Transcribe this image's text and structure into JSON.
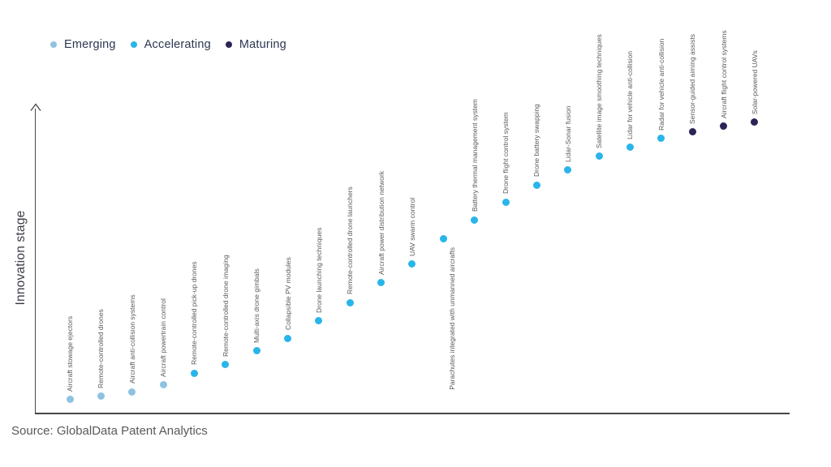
{
  "legend": {
    "items": [
      {
        "label": "Emerging",
        "stage": "emerging"
      },
      {
        "label": "Accelerating",
        "stage": "accelerating"
      },
      {
        "label": "Maturing",
        "stage": "maturing"
      }
    ]
  },
  "colors": {
    "emerging": "#8fc2e0",
    "accelerating": "#29b5ea",
    "maturing": "#2d2356",
    "axis": "#474747",
    "point_label_text": "#595959",
    "legend_text": "#2b3750",
    "y_axis_title_text": "#3a3b45",
    "source_text": "#595959"
  },
  "axis": {
    "y_label": "Innovation stage"
  },
  "source": {
    "text": "Source: GlobalData Patent Analytics"
  },
  "chart_data": {
    "type": "scatter",
    "title": "",
    "xlabel": "",
    "ylabel": "Innovation stage",
    "grid": false,
    "legend_position": "top-left",
    "legend": [
      "Emerging",
      "Accelerating",
      "Maturing"
    ],
    "y_axis": "qualitative innovation-stage scale (no numeric ticks); score is 0-100 position estimated from pixels, bottom=0, top=100",
    "points": [
      {
        "label": "Aircraft stowage ejectors",
        "stage": "emerging",
        "score": 4.5,
        "label_position": "above"
      },
      {
        "label": "Remote-controlled drones",
        "stage": "emerging",
        "score": 5.6,
        "label_position": "above"
      },
      {
        "label": "Aircraft anti-collision systems",
        "stage": "emerging",
        "score": 7.1,
        "label_position": "above"
      },
      {
        "label": "Aircraft powertrain control",
        "stage": "emerging",
        "score": 9.3,
        "label_position": "above"
      },
      {
        "label": "Remote-controlled pick-up drones",
        "stage": "accelerating",
        "score": 13.2,
        "label_position": "above"
      },
      {
        "label": "Remote-controlled drone imaging",
        "stage": "accelerating",
        "score": 15.9,
        "label_position": "above"
      },
      {
        "label": "Multi-axis drone gimbals",
        "stage": "accelerating",
        "score": 20.4,
        "label_position": "above"
      },
      {
        "label": "Collapsible PV modules",
        "stage": "accelerating",
        "score": 24.6,
        "label_position": "above"
      },
      {
        "label": "Drone launching techniques",
        "stage": "accelerating",
        "score": 30.2,
        "label_position": "above"
      },
      {
        "label": "Remote-controlled drone launchers",
        "stage": "accelerating",
        "score": 36.2,
        "label_position": "above"
      },
      {
        "label": "Aircraft power distribution network",
        "stage": "accelerating",
        "score": 42.6,
        "label_position": "above"
      },
      {
        "label": "UAV swarm control",
        "stage": "accelerating",
        "score": 48.7,
        "label_position": "above"
      },
      {
        "label": "Parachutes integrated with unmanned aircrafts",
        "stage": "accelerating",
        "score": 56.9,
        "label_position": "below"
      },
      {
        "label": "Battery thermal management system",
        "stage": "accelerating",
        "score": 63.2,
        "label_position": "above"
      },
      {
        "label": "Drone flight control system",
        "stage": "accelerating",
        "score": 69.0,
        "label_position": "above"
      },
      {
        "label": "Drone battery swapping",
        "stage": "accelerating",
        "score": 74.6,
        "label_position": "above"
      },
      {
        "label": "Lidar-Sonar fusion",
        "stage": "accelerating",
        "score": 79.4,
        "label_position": "above"
      },
      {
        "label": "Satellite image smoothing techniques",
        "stage": "accelerating",
        "score": 83.9,
        "label_position": "above"
      },
      {
        "label": "Lidar for vehicle anti-collision",
        "stage": "accelerating",
        "score": 86.8,
        "label_position": "above"
      },
      {
        "label": "Radar for vehicle anti-collision",
        "stage": "accelerating",
        "score": 89.7,
        "label_position": "above"
      },
      {
        "label": "Sensor-guided aiming assists",
        "stage": "maturing",
        "score": 91.8,
        "label_position": "above"
      },
      {
        "label": "Aircraft flight control systems",
        "stage": "maturing",
        "score": 93.7,
        "label_position": "above"
      },
      {
        "label": "Solar-powered UAVs",
        "stage": "maturing",
        "score": 95.0,
        "label_position": "above"
      }
    ]
  }
}
